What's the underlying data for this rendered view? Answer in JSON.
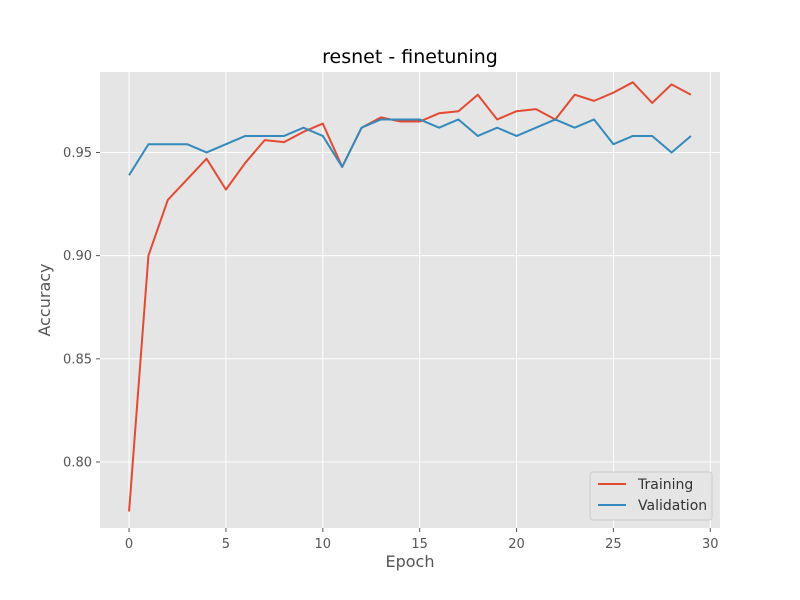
{
  "chart_data": {
    "type": "line",
    "title": "resnet - finetuning",
    "xlabel": "Epoch",
    "ylabel": "Accuracy",
    "xlim": [
      -1.5,
      30.5
    ],
    "ylim": [
      0.768,
      0.989
    ],
    "xticks": [
      0,
      5,
      10,
      15,
      20,
      25,
      30
    ],
    "yticks": [
      0.8,
      0.85,
      0.9,
      0.95
    ],
    "x": [
      0,
      1,
      2,
      3,
      4,
      5,
      6,
      7,
      8,
      9,
      10,
      11,
      12,
      13,
      14,
      15,
      16,
      17,
      18,
      19,
      20,
      21,
      22,
      23,
      24,
      25,
      26,
      27,
      28,
      29
    ],
    "series": [
      {
        "name": "Training",
        "color": "#e24a33",
        "values": [
          0.776,
          0.9,
          0.927,
          0.937,
          0.947,
          0.932,
          0.945,
          0.956,
          0.955,
          0.96,
          0.964,
          0.943,
          0.962,
          0.967,
          0.965,
          0.965,
          0.969,
          0.97,
          0.978,
          0.966,
          0.97,
          0.971,
          0.966,
          0.978,
          0.975,
          0.979,
          0.984,
          0.974,
          0.983,
          0.978
        ]
      },
      {
        "name": "Validation",
        "color": "#348abd",
        "values": [
          0.939,
          0.954,
          0.954,
          0.954,
          0.95,
          0.954,
          0.958,
          0.958,
          0.958,
          0.962,
          0.958,
          0.943,
          0.962,
          0.966,
          0.966,
          0.966,
          0.962,
          0.966,
          0.958,
          0.962,
          0.958,
          0.962,
          0.966,
          0.962,
          0.966,
          0.954,
          0.958,
          0.958,
          0.95,
          0.958
        ]
      }
    ],
    "grid": true,
    "legend_position": "lower-right"
  }
}
